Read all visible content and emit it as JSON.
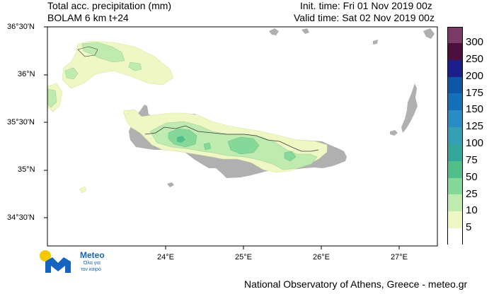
{
  "header": {
    "product_title": "Total acc. precipitation (mm)",
    "model": "BOLAM 6 km t+24",
    "init_time": "Init. time: Fri 01 Nov 2019 00z",
    "valid_time": "Valid time: Sat 02 Nov 2019 00z"
  },
  "axes": {
    "latitudes": [
      "36°30'N",
      "36°N",
      "35°30'N",
      "35°N",
      "34°30'N"
    ],
    "longitudes": [
      "24°E",
      "25°E",
      "26°E",
      "27°E"
    ]
  },
  "legend": {
    "levels": [
      {
        "label": "300",
        "color": "#4a0f3c"
      },
      {
        "label": "250",
        "color": "#1c1f8a"
      },
      {
        "label": "200",
        "color": "#0d57a6"
      },
      {
        "label": "175",
        "color": "#1670b8"
      },
      {
        "label": "150",
        "color": "#2a8cc4"
      },
      {
        "label": "125",
        "color": "#35a0b4"
      },
      {
        "label": "100",
        "color": "#33a89a"
      },
      {
        "label": "75",
        "color": "#52bf8a"
      },
      {
        "label": "50",
        "color": "#86d898"
      },
      {
        "label": "25",
        "color": "#bfeab0"
      },
      {
        "label": "10",
        "color": "#eff7c4"
      },
      {
        "label": "5",
        "color": "#ffffff"
      }
    ],
    "top_color": "#7a3a66"
  },
  "logo": {
    "brand": "Meteo",
    "tagline_line1": "Όλα για",
    "tagline_line2": "τον καιρό",
    "icon_color": "#1565c0",
    "sun_color": "#f5c800"
  },
  "footer": {
    "credit": "National Observatory of Athens, Greece - meteo.gr"
  },
  "colors": {
    "land": "#b0b0b0",
    "precip_10": "#eff7c4",
    "precip_25": "#bfeab0",
    "precip_50": "#86d898"
  }
}
